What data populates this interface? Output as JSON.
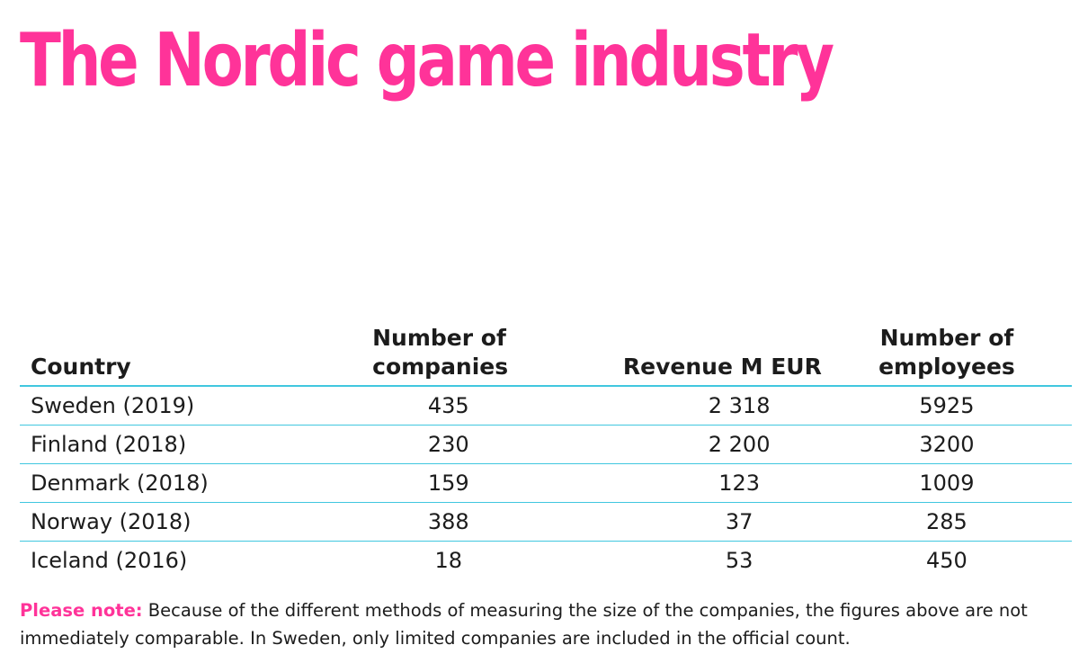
{
  "title": "The Nordic game industry",
  "colors": {
    "accent": "#ff3399",
    "rule": "#41c7df",
    "text": "#1c1c1c"
  },
  "table": {
    "headers": {
      "country": "Country",
      "companies_line1": "Number of",
      "companies_line2": "companies",
      "revenue": "Revenue M EUR",
      "employees_line1": "Number of",
      "employees_line2": "employees"
    },
    "rows": [
      {
        "country": "Sweden (2019)",
        "companies": "435",
        "revenue": "2 318",
        "employees": "5925"
      },
      {
        "country": "Finland (2018)",
        "companies": "230",
        "revenue": "2 200",
        "employees": "3200"
      },
      {
        "country": "Denmark (2018)",
        "companies": "159",
        "revenue": "123",
        "employees": "1009"
      },
      {
        "country": "Norway (2018)",
        "companies": "388",
        "revenue": "37",
        "employees": "285"
      },
      {
        "country": "Iceland (2016)",
        "companies": "18",
        "revenue": "53",
        "employees": "450"
      }
    ]
  },
  "note": {
    "label": "Please note:",
    "text": " Because of the different methods of measuring the size of the companies, the figures above are not immediately comparable. In Sweden, only limited companies are included in the official count."
  }
}
